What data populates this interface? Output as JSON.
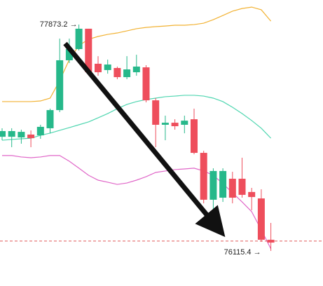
{
  "chart_data": {
    "type": "candlestick",
    "ylim": [
      75843,
      78064
    ],
    "up_color": "#26b88a",
    "down_color": "#ee4e5c",
    "open": [
      77002,
      77002,
      76997,
      77019,
      77013,
      77068,
      77209,
      77596,
      77683,
      77841,
      77569,
      77520,
      77536,
      77465,
      77503,
      77541,
      77285,
      77095,
      77111,
      77095,
      77138,
      76877,
      76513,
      76529,
      76676,
      76676,
      76573,
      76523,
      76202
    ],
    "high": [
      77068,
      77068,
      77057,
      77051,
      77095,
      77220,
      77764,
      77764,
      77873.2,
      77841,
      77628,
      77601,
      77547,
      77628,
      77639,
      77558,
      77302,
      77166,
      77138,
      77166,
      77220,
      76893,
      76757,
      76757,
      76730,
      76839,
      76605,
      76594,
      76333
    ],
    "low": [
      76975,
      76921,
      76948,
      76921,
      76986,
      77029,
      77193,
      77574,
      77672,
      77492,
      77476,
      77492,
      77449,
      77449,
      77476,
      77269,
      76921,
      76975,
      77057,
      77029,
      76866,
      76485,
      76377,
      76496,
      76485,
      76529,
      76431,
      76186,
      76115.4
    ],
    "close": [
      77046,
      77046,
      77040,
      76991,
      77079,
      77209,
      77596,
      77683,
      77841,
      77503,
      77503,
      77563,
      77465,
      77525,
      77547,
      77285,
      77095,
      77111,
      77084,
      77127,
      76877,
      76513,
      76736,
      76736,
      76529,
      76551,
      76534,
      76202,
      76180
    ],
    "lines": [
      {
        "color": "#f2b233",
        "values": [
          77275,
          77275,
          77275,
          77275,
          77280,
          77302,
          77438,
          77601,
          77710,
          77759,
          77781,
          77797,
          77808,
          77824,
          77841,
          77851,
          77857,
          77862,
          77868,
          77868,
          77873,
          77884,
          77911,
          77944,
          77977,
          77998,
          78009,
          77988,
          77900
        ]
      },
      {
        "color": "#4fd6b0",
        "values": [
          76975,
          76981,
          76986,
          76991,
          77013,
          77030,
          77052,
          77073,
          77095,
          77117,
          77149,
          77182,
          77220,
          77253,
          77275,
          77291,
          77302,
          77313,
          77318,
          77324,
          77324,
          77318,
          77302,
          77275,
          77231,
          77182,
          77128,
          77068,
          76991
        ]
      },
      {
        "color": "#e066c8",
        "values": [
          76856,
          76856,
          76845,
          76839,
          76845,
          76856,
          76856,
          76812,
          76758,
          76703,
          76665,
          76649,
          76632,
          76643,
          76665,
          76692,
          76725,
          76736,
          76747,
          76752,
          76758,
          76736,
          76703,
          76638,
          76567,
          76496,
          76420,
          76279,
          76132
        ]
      }
    ],
    "price_line": {
      "value": 76192,
      "color": "#e05a5a"
    },
    "high_label": "77873.2 →",
    "low_label": "76115.4 →"
  }
}
